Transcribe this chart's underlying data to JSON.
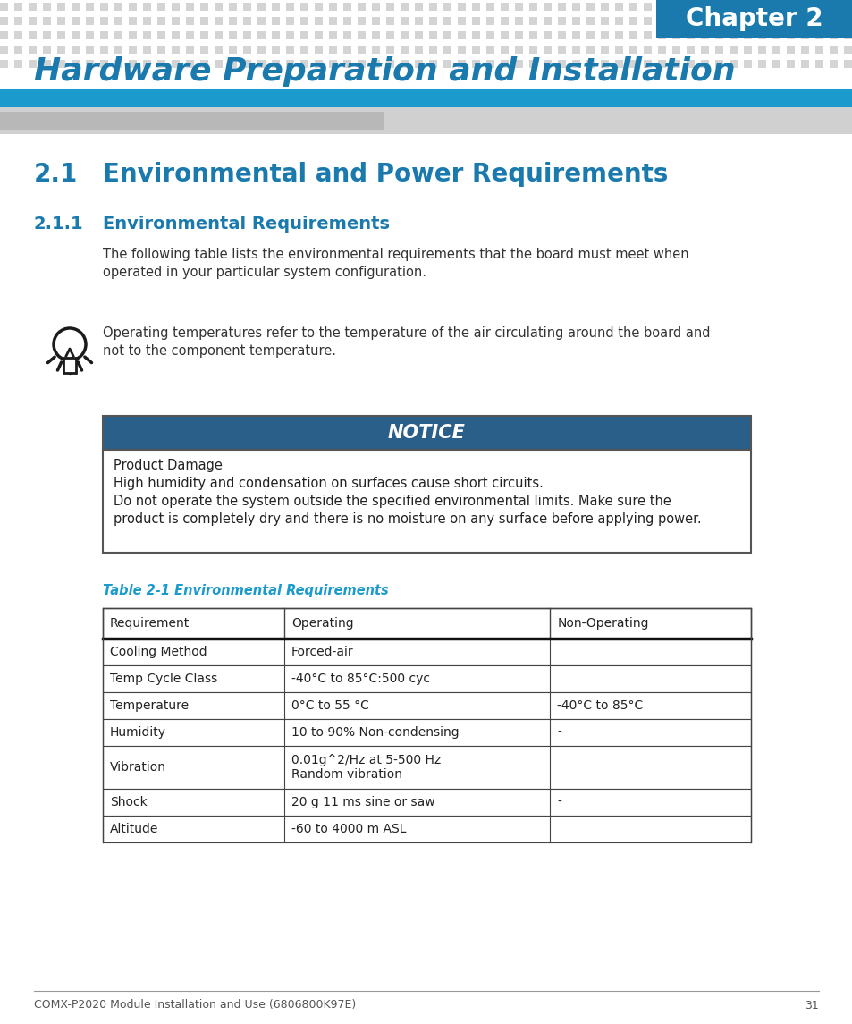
{
  "page_bg": "#ffffff",
  "chapter_label": "Chapter 2",
  "chapter_bg": "#1a7aad",
  "title": "Hardware Preparation and Installation",
  "title_color": "#1a7aad",
  "section_21": "2.1",
  "section_21_title": "Environmental and Power Requirements",
  "section_211": "2.1.1",
  "section_211_title": "Environmental Requirements",
  "section_color": "#1a7aad",
  "body_text_line1": "The following table lists the environmental requirements that the board must meet when",
  "body_text_line2": "operated in your particular system configuration.",
  "tip_line1": "Operating temperatures refer to the temperature of the air circulating around the board and",
  "tip_line2": "not to the component temperature.",
  "notice_bg": "#2a5f8a",
  "notice_title": "NOTICE",
  "notice_body_title": "Product Damage",
  "notice_body_line1": "High humidity and condensation on surfaces cause short circuits.",
  "notice_body_line2": "Do not operate the system outside the specified environmental limits. Make sure the",
  "notice_body_line3": "product is completely dry and there is no moisture on any surface before applying power.",
  "table_caption": "Table 2-1 Environmental Requirements",
  "table_caption_color": "#1a9acd",
  "table_header": [
    "Requirement",
    "Operating",
    "Non-Operating"
  ],
  "table_rows": [
    [
      "Cooling Method",
      "Forced-air",
      ""
    ],
    [
      "Temp Cycle Class",
      "-40°C to 85°C:500 cyc",
      ""
    ],
    [
      "Temperature",
      "0°C to 55 °C",
      "-40°C to 85°C"
    ],
    [
      "Humidity",
      "10 to 90% Non-condensing",
      "-"
    ],
    [
      "Vibration",
      "0.01g^2/Hz at 5-500 Hz\nRandom vibration",
      ""
    ],
    [
      "Shock",
      "20 g 11 ms sine or saw",
      "-"
    ],
    [
      "Altitude",
      "-60 to 4000 m ASL",
      ""
    ]
  ],
  "footer_text": "COMX-P2020 Module Installation and Use (6806800K97E)",
  "footer_page": "31",
  "footer_color": "#555555",
  "dot_color": "#d4d4d4",
  "stripe_blue": "#1a9acd",
  "stripe_gray": "#c8c8c8",
  "stripe_gray2": "#b0b0b0"
}
